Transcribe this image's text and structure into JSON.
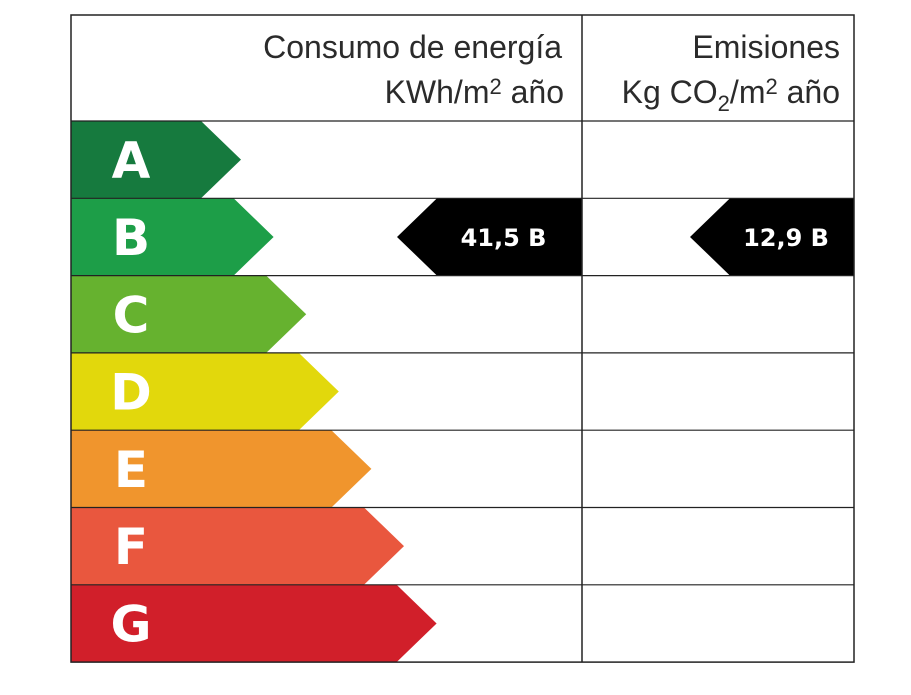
{
  "header": {
    "energy": {
      "title": "Consumo de energía",
      "unit_prefix": "KWh/m",
      "unit_exp": "2",
      "unit_suffix": " año"
    },
    "emissions": {
      "title": "Emisiones",
      "unit_prefix": "Kg CO",
      "unit_sub": "2",
      "unit_mid": "/m",
      "unit_exp": "2",
      "unit_suffix": " año"
    }
  },
  "chart_data": {
    "type": "table",
    "classes": [
      {
        "letter": "A",
        "color": "#167a3e"
      },
      {
        "letter": "B",
        "color": "#1d9e48"
      },
      {
        "letter": "C",
        "color": "#66b22f"
      },
      {
        "letter": "D",
        "color": "#e2d80c"
      },
      {
        "letter": "E",
        "color": "#f0952d"
      },
      {
        "letter": "F",
        "color": "#e9573e"
      },
      {
        "letter": "G",
        "color": "#d11f2a"
      }
    ],
    "energy_rating": {
      "class": "B",
      "value": "41,5",
      "label": "41,5 B"
    },
    "emissions_rating": {
      "class": "B",
      "value": "12,9",
      "label": "12,9 B"
    },
    "marker_color": "#000000",
    "grid_color": "#222222"
  }
}
